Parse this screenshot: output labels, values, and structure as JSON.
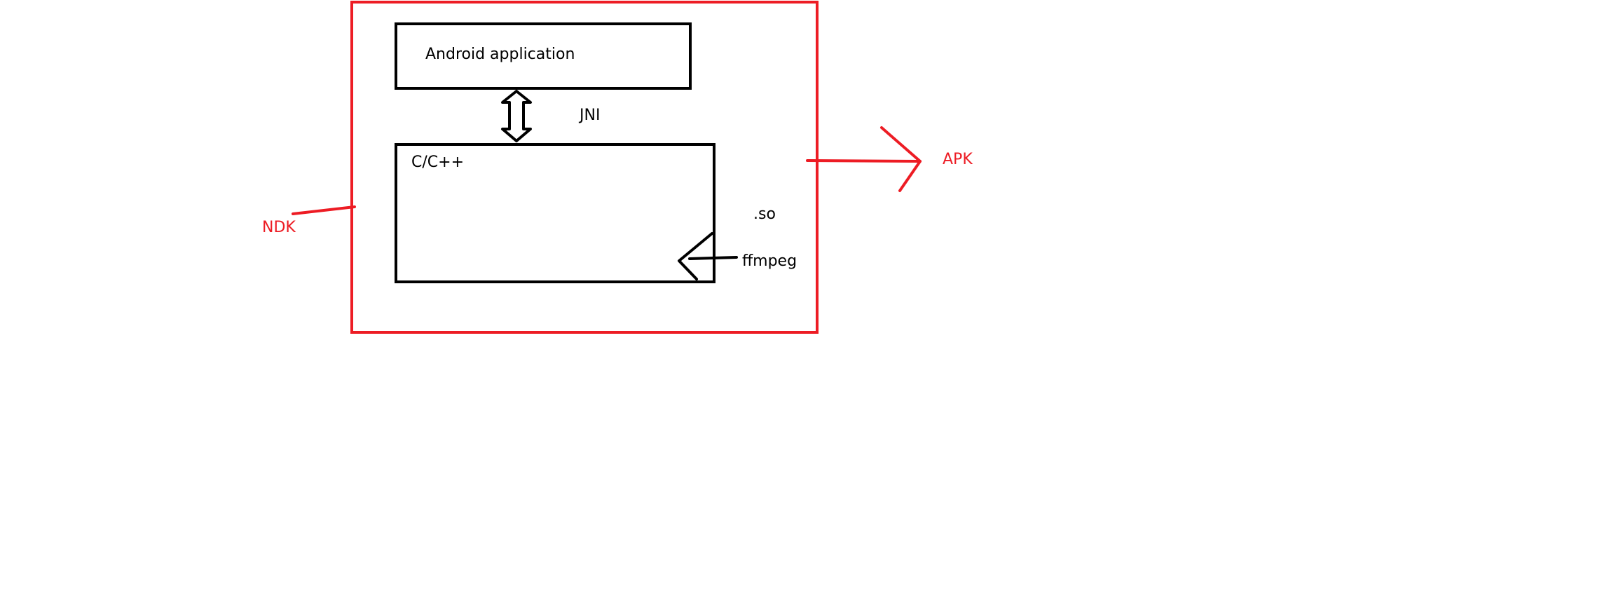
{
  "diagram": {
    "labels": {
      "android_application": "Android application",
      "jni": "JNI",
      "cpp": "C/C++",
      "so": ".so",
      "ffmpeg": "ffmpeg",
      "ndk": "NDK",
      "apk": "APK"
    },
    "colors": {
      "annotation": "#ed1c24",
      "box": "#000000",
      "background": "#ffffff"
    }
  }
}
